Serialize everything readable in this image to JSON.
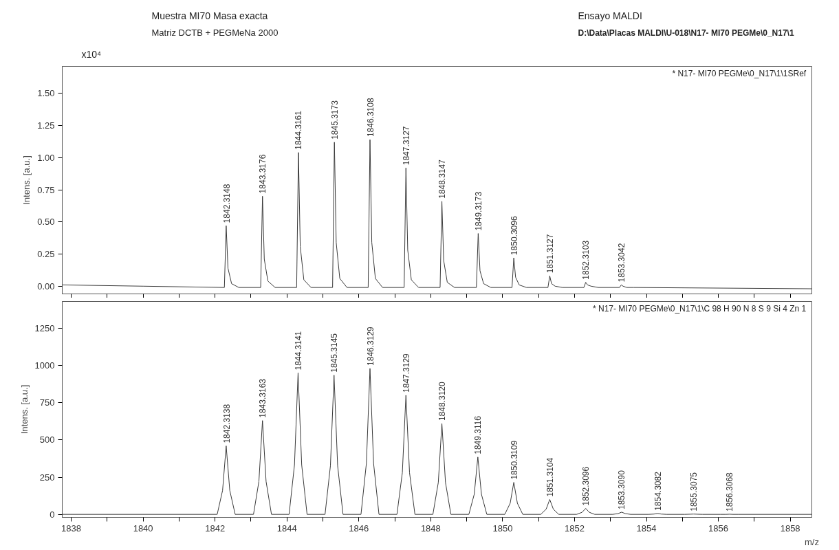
{
  "chart_data": [
    {
      "type": "line",
      "title": "Muestra  MI70  Masa exacta",
      "subtitle": "Matriz   DCTB + PEGMeNa 2000",
      "ylabel": "Intens. [a.u.]",
      "tick_labels": "y",
      "grid": false,
      "xlim": [
        1837.75,
        1858.6
      ],
      "ylim": [
        -0.06,
        1.71
      ],
      "xticks": [
        {
          "value": 1838,
          "label": null
        },
        {
          "value": 1839,
          "label": null
        },
        {
          "value": 1840,
          "label": null
        },
        {
          "value": 1841,
          "label": null
        },
        {
          "value": 1842,
          "label": null
        },
        {
          "value": 1843,
          "label": null
        },
        {
          "value": 1844,
          "label": null
        },
        {
          "value": 1845,
          "label": null
        },
        {
          "value": 1846,
          "label": null
        },
        {
          "value": 1847,
          "label": null
        },
        {
          "value": 1848,
          "label": null
        },
        {
          "value": 1849,
          "label": null
        },
        {
          "value": 1850,
          "label": null
        },
        {
          "value": 1851,
          "label": null
        },
        {
          "value": 1852,
          "label": null
        },
        {
          "value": 1853,
          "label": null
        },
        {
          "value": 1854,
          "label": null
        },
        {
          "value": 1855,
          "label": null
        },
        {
          "value": 1856,
          "label": null
        },
        {
          "value": 1857,
          "label": null
        },
        {
          "value": 1858,
          "label": null
        }
      ],
      "yticks": [
        {
          "value": 0,
          "label": "0.00"
        },
        {
          "value": 0.25,
          "label": "0.25"
        },
        {
          "value": 0.5,
          "label": "0.50"
        },
        {
          "value": 0.75,
          "label": "0.75"
        },
        {
          "value": 1,
          "label": "1.00"
        },
        {
          "value": 1.25,
          "label": "1.25"
        },
        {
          "value": 1.5,
          "label": "1.50"
        }
      ],
      "series": [
        {
          "color": "#3a3a3a",
          "x": [
            1837.75,
            1840,
            1842.26,
            1842.31,
            1842.36,
            1842.46,
            1842.66,
            1843.27,
            1843.32,
            1843.37,
            1843.47,
            1843.67,
            1844.27,
            1844.32,
            1844.37,
            1844.47,
            1844.67,
            1845.27,
            1845.32,
            1845.37,
            1845.47,
            1845.67,
            1846.26,
            1846.31,
            1846.36,
            1846.46,
            1846.66,
            1847.26,
            1847.31,
            1847.36,
            1847.46,
            1847.66,
            1848.26,
            1848.31,
            1848.36,
            1848.46,
            1848.66,
            1849.27,
            1849.32,
            1849.37,
            1849.47,
            1849.67,
            1850.26,
            1850.31,
            1850.36,
            1850.46,
            1850.66,
            1851.26,
            1851.31,
            1851.36,
            1851.46,
            1851.66,
            1852.26,
            1852.31,
            1852.36,
            1852.46,
            1852.66,
            1853.25,
            1853.3,
            1853.35,
            1853.45,
            1853.65,
            1858.6
          ],
          "values": [
            0.01,
            0.0,
            -0.01,
            0.47,
            0.14,
            0.02,
            -0.01,
            -0.01,
            0.7,
            0.21,
            0.04,
            -0.01,
            -0.01,
            1.04,
            0.31,
            0.05,
            -0.01,
            -0.01,
            1.12,
            0.34,
            0.06,
            -0.01,
            -0.01,
            1.14,
            0.34,
            0.06,
            -0.01,
            -0.01,
            0.92,
            0.28,
            0.05,
            -0.01,
            -0.01,
            0.66,
            0.2,
            0.03,
            -0.01,
            -0.01,
            0.41,
            0.12,
            0.02,
            -0.01,
            -0.01,
            0.22,
            0.07,
            0.01,
            -0.01,
            -0.01,
            0.08,
            0.02,
            0.0,
            -0.01,
            -0.01,
            0.03,
            0.01,
            0.0,
            -0.01,
            -0.01,
            0.01,
            0.0,
            -0.01,
            -0.01,
            -0.02
          ]
        }
      ],
      "annotations": [
        "Ensayo MALDI",
        "D:\\Data\\Placas MALDI\\U-018\\N17- MI70  PEGMe\\0_N17\\1",
        "* N17- MI70  PEGMe\\0_N17\\1\\1SRef",
        "x10⁴",
        {
          "text": "1842.3148",
          "x": 1842.3148,
          "y": 0.47
        },
        {
          "text": "1843.3176",
          "x": 1843.3176,
          "y": 0.7
        },
        {
          "text": "1844.3161",
          "x": 1844.3161,
          "y": 1.04
        },
        {
          "text": "1845.3173",
          "x": 1845.3173,
          "y": 1.12
        },
        {
          "text": "1846.3108",
          "x": 1846.3108,
          "y": 1.14
        },
        {
          "text": "1847.3127",
          "x": 1847.3127,
          "y": 0.92
        },
        {
          "text": "1848.3147",
          "x": 1848.3147,
          "y": 0.66
        },
        {
          "text": "1849.3173",
          "x": 1849.3173,
          "y": 0.41
        },
        {
          "text": "1850.3096",
          "x": 1850.3096,
          "y": 0.22
        },
        {
          "text": "1851.3127",
          "x": 1851.3127,
          "y": 0.08
        },
        {
          "text": "1852.3103",
          "x": 1852.3103,
          "y": 0.03
        },
        {
          "text": "1853.3042",
          "x": 1853.3042,
          "y": 0.01
        }
      ]
    },
    {
      "type": "line",
      "ylabel": "Intens. [a.u.]",
      "xlabel": "m/z",
      "grid": false,
      "xlim": [
        1837.75,
        1858.6
      ],
      "ylim": [
        -20,
        1430
      ],
      "xticks": [
        1838,
        {
          "value": 1839,
          "label": null
        },
        1840,
        {
          "value": 1841,
          "label": null
        },
        1842,
        {
          "value": 1843,
          "label": null
        },
        1844,
        {
          "value": 1845,
          "label": null
        },
        1846,
        {
          "value": 1847,
          "label": null
        },
        1848,
        {
          "value": 1849,
          "label": null
        },
        1850,
        {
          "value": 1851,
          "label": null
        },
        1852,
        {
          "value": 1853,
          "label": null
        },
        1854,
        {
          "value": 1855,
          "label": null
        },
        1856,
        {
          "value": 1857,
          "label": null
        },
        1858
      ],
      "yticks": [
        0,
        250,
        500,
        750,
        1000,
        1250
      ],
      "series": [
        {
          "color": "#3a3a3a",
          "x": [
            1837.75,
            1842.06,
            1842.21,
            1842.31,
            1842.41,
            1842.56,
            1843.07,
            1843.22,
            1843.32,
            1843.42,
            1843.57,
            1844.06,
            1844.21,
            1844.31,
            1844.41,
            1844.56,
            1845.06,
            1845.21,
            1845.31,
            1845.41,
            1845.56,
            1846.06,
            1846.21,
            1846.31,
            1846.41,
            1846.56,
            1847.06,
            1847.21,
            1847.31,
            1847.41,
            1847.56,
            1848.06,
            1848.21,
            1848.31,
            1848.41,
            1848.56,
            1849.06,
            1849.21,
            1849.31,
            1849.41,
            1849.56,
            1850.06,
            1850.21,
            1850.31,
            1850.41,
            1850.56,
            1851.06,
            1851.21,
            1851.31,
            1851.41,
            1851.56,
            1852.06,
            1852.21,
            1852.31,
            1852.41,
            1852.56,
            1853.06,
            1853.21,
            1853.31,
            1853.41,
            1853.56,
            1854.06,
            1854.21,
            1854.31,
            1854.41,
            1854.56,
            1855.06,
            1855.21,
            1855.31,
            1855.41,
            1855.56,
            1856.06,
            1856.21,
            1856.31,
            1856.41,
            1856.56,
            1858.6
          ],
          "values": [
            0,
            0,
            161,
            460,
            161,
            0,
            0,
            221,
            630,
            221,
            0,
            0,
            333,
            950,
            333,
            0,
            0,
            327,
            935,
            327,
            0,
            0,
            343,
            980,
            343,
            0,
            0,
            280,
            800,
            280,
            0,
            0,
            214,
            610,
            214,
            0,
            0,
            135,
            385,
            135,
            0,
            0,
            75,
            215,
            75,
            0,
            0,
            35,
            100,
            35,
            0,
            0,
            14,
            40,
            14,
            0,
            0,
            5,
            15,
            5,
            0,
            0,
            2,
            6,
            2,
            0,
            0,
            1,
            2,
            1,
            0,
            0,
            0,
            1,
            0,
            0,
            0
          ]
        }
      ],
      "annotations": [
        "* N17- MI70  PEGMe\\0_N17\\1\\C 98 H 90 N 8 S 9 Si 4 Zn 1",
        {
          "text": "1842.3138",
          "x": 1842.3138,
          "y": 460
        },
        {
          "text": "1843.3163",
          "x": 1843.3163,
          "y": 630
        },
        {
          "text": "1844.3141",
          "x": 1844.3141,
          "y": 950
        },
        {
          "text": "1845.3145",
          "x": 1845.3145,
          "y": 935
        },
        {
          "text": "1846.3129",
          "x": 1846.3129,
          "y": 980
        },
        {
          "text": "1847.3129",
          "x": 1847.3129,
          "y": 800
        },
        {
          "text": "1848.3120",
          "x": 1848.312,
          "y": 610
        },
        {
          "text": "1849.3116",
          "x": 1849.3116,
          "y": 385
        },
        {
          "text": "1850.3109",
          "x": 1850.3109,
          "y": 215
        },
        {
          "text": "1851.3104",
          "x": 1851.3104,
          "y": 100
        },
        {
          "text": "1852.3096",
          "x": 1852.3096,
          "y": 40
        },
        {
          "text": "1853.3090",
          "x": 1853.309,
          "y": 15
        },
        {
          "text": "1854.3082",
          "x": 1854.3082,
          "y": 6
        },
        {
          "text": "1855.3075",
          "x": 1855.3075,
          "y": 2
        },
        {
          "text": "1856.3068",
          "x": 1856.3068,
          "y": 1
        }
      ]
    }
  ]
}
